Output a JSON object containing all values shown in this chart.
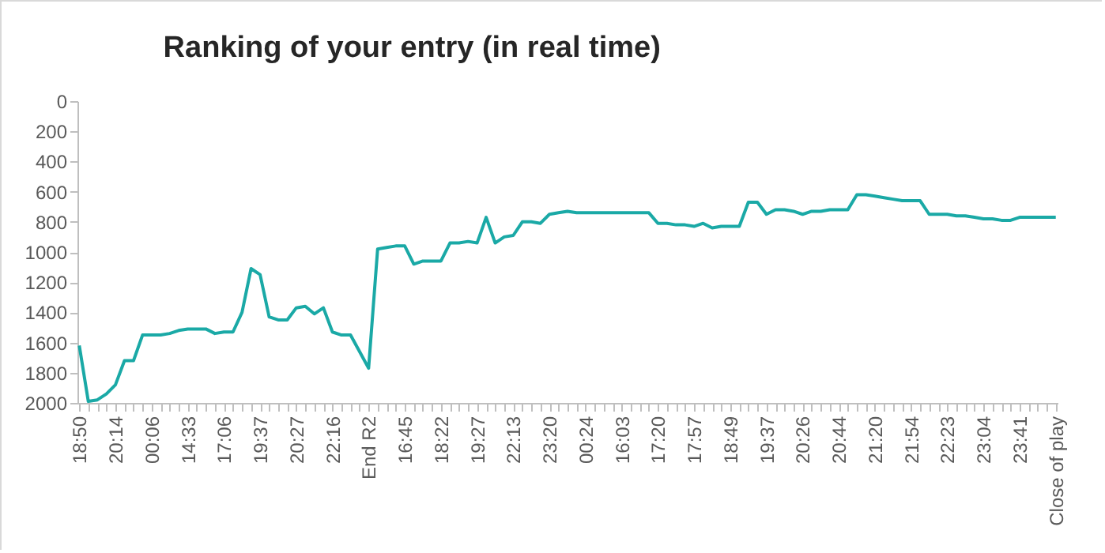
{
  "chart_data": {
    "type": "line",
    "title": "Ranking of your entry (in real time)",
    "categories": [
      "18:50",
      null,
      null,
      null,
      "20:14",
      null,
      null,
      null,
      "00:06",
      null,
      null,
      null,
      "14:33",
      null,
      null,
      null,
      "17:06",
      null,
      null,
      null,
      "19:37",
      null,
      null,
      null,
      "20:27",
      null,
      null,
      null,
      "22:16",
      null,
      null,
      null,
      "End R2",
      null,
      null,
      null,
      "16:45",
      null,
      null,
      null,
      "18:22",
      null,
      null,
      null,
      "19:27",
      null,
      null,
      null,
      "22:13",
      null,
      null,
      null,
      "23:20",
      null,
      null,
      null,
      "00:24",
      null,
      null,
      null,
      "16:03",
      null,
      null,
      null,
      "17:20",
      null,
      null,
      null,
      "17:57",
      null,
      null,
      null,
      "18:49",
      null,
      null,
      null,
      "19:37",
      null,
      null,
      null,
      "20:26",
      null,
      null,
      null,
      "20:44",
      null,
      null,
      null,
      "21:20",
      null,
      null,
      null,
      "21:54",
      null,
      null,
      null,
      "22:23",
      null,
      null,
      null,
      "23:04",
      null,
      null,
      null,
      "23:41",
      null,
      null,
      null,
      "Close of play"
    ],
    "series": [
      {
        "color": "#1aa9a6",
        "values": [
          1620,
          1990,
          1980,
          1940,
          1880,
          1720,
          1720,
          1550,
          1550,
          1550,
          1540,
          1520,
          1510,
          1510,
          1510,
          1540,
          1530,
          1530,
          1400,
          1110,
          1150,
          1430,
          1450,
          1450,
          1370,
          1360,
          1410,
          1370,
          1530,
          1550,
          1550,
          1660,
          1770,
          980,
          970,
          960,
          960,
          1080,
          1060,
          1060,
          1060,
          940,
          940,
          930,
          940,
          770,
          940,
          900,
          890,
          800,
          800,
          810,
          750,
          740,
          730,
          740,
          740,
          740,
          740,
          740,
          740,
          740,
          740,
          740,
          810,
          810,
          820,
          820,
          830,
          810,
          840,
          830,
          830,
          830,
          670,
          670,
          750,
          720,
          720,
          730,
          750,
          730,
          730,
          720,
          720,
          720,
          620,
          620,
          630,
          640,
          650,
          660,
          660,
          660,
          750,
          750,
          750,
          760,
          760,
          770,
          780,
          780,
          790,
          790,
          770,
          770,
          770,
          770,
          770
        ]
      }
    ],
    "ylim": [
      2000,
      0
    ],
    "yticks": [
      0,
      200,
      400,
      600,
      800,
      1000,
      1200,
      1400,
      1600,
      1800,
      2000
    ],
    "grid": false,
    "marker": "none",
    "line_style": "solid"
  }
}
